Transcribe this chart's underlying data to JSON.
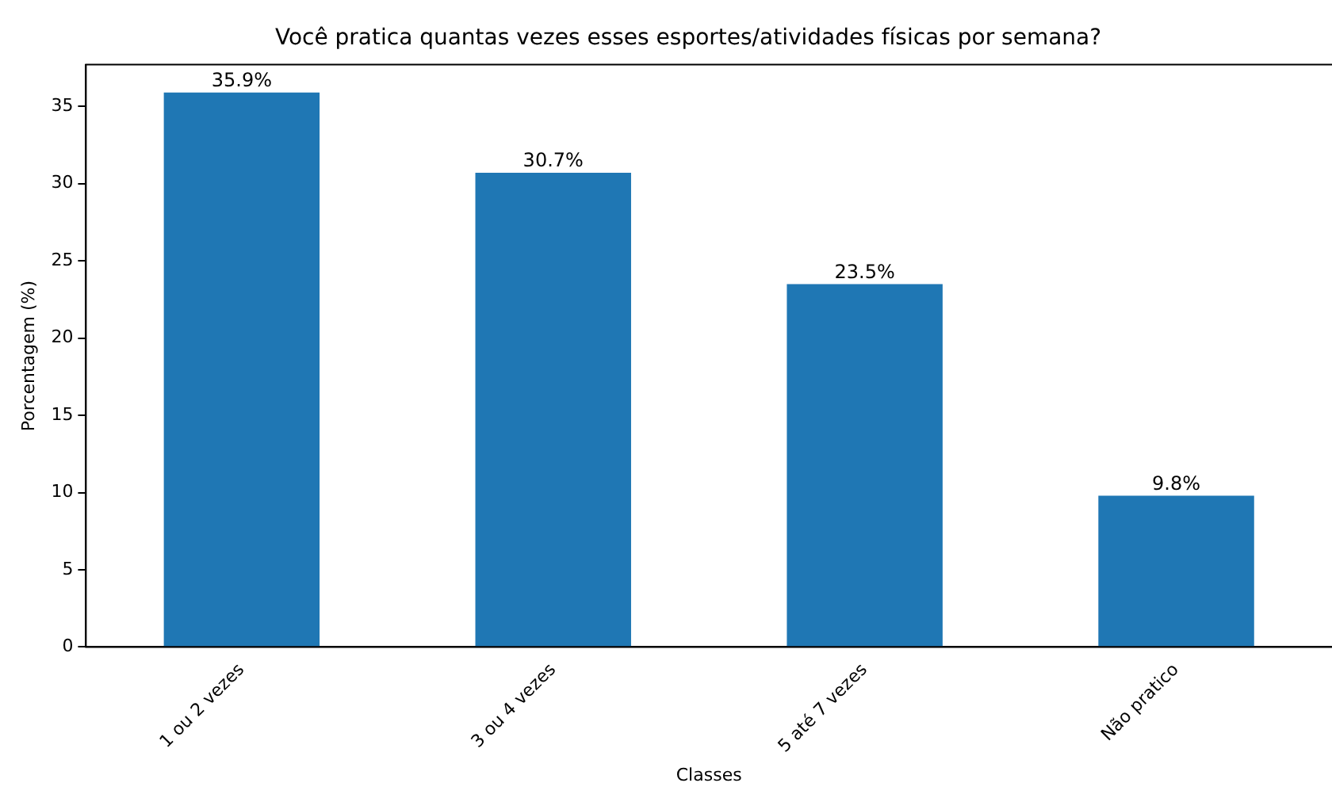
{
  "chart_data": {
    "type": "bar",
    "title": "Você pratica quantas vezes esses esportes/atividades físicas por semana?",
    "xlabel": "Classes",
    "ylabel": "Porcentagem (%)",
    "categories": [
      "1 ou 2 vezes",
      "3 ou 4 vezes",
      "5 até 7 vezes",
      "Não pratico"
    ],
    "values": [
      35.9,
      30.7,
      23.5,
      9.8
    ],
    "value_labels": [
      "35.9%",
      "30.7%",
      "23.5%",
      "9.8%"
    ],
    "color": "#1f77b4",
    "ylim": [
      0,
      37.7
    ],
    "yticks": [
      0,
      5,
      10,
      15,
      20,
      25,
      30,
      35
    ],
    "grid": false,
    "legend": false
  }
}
